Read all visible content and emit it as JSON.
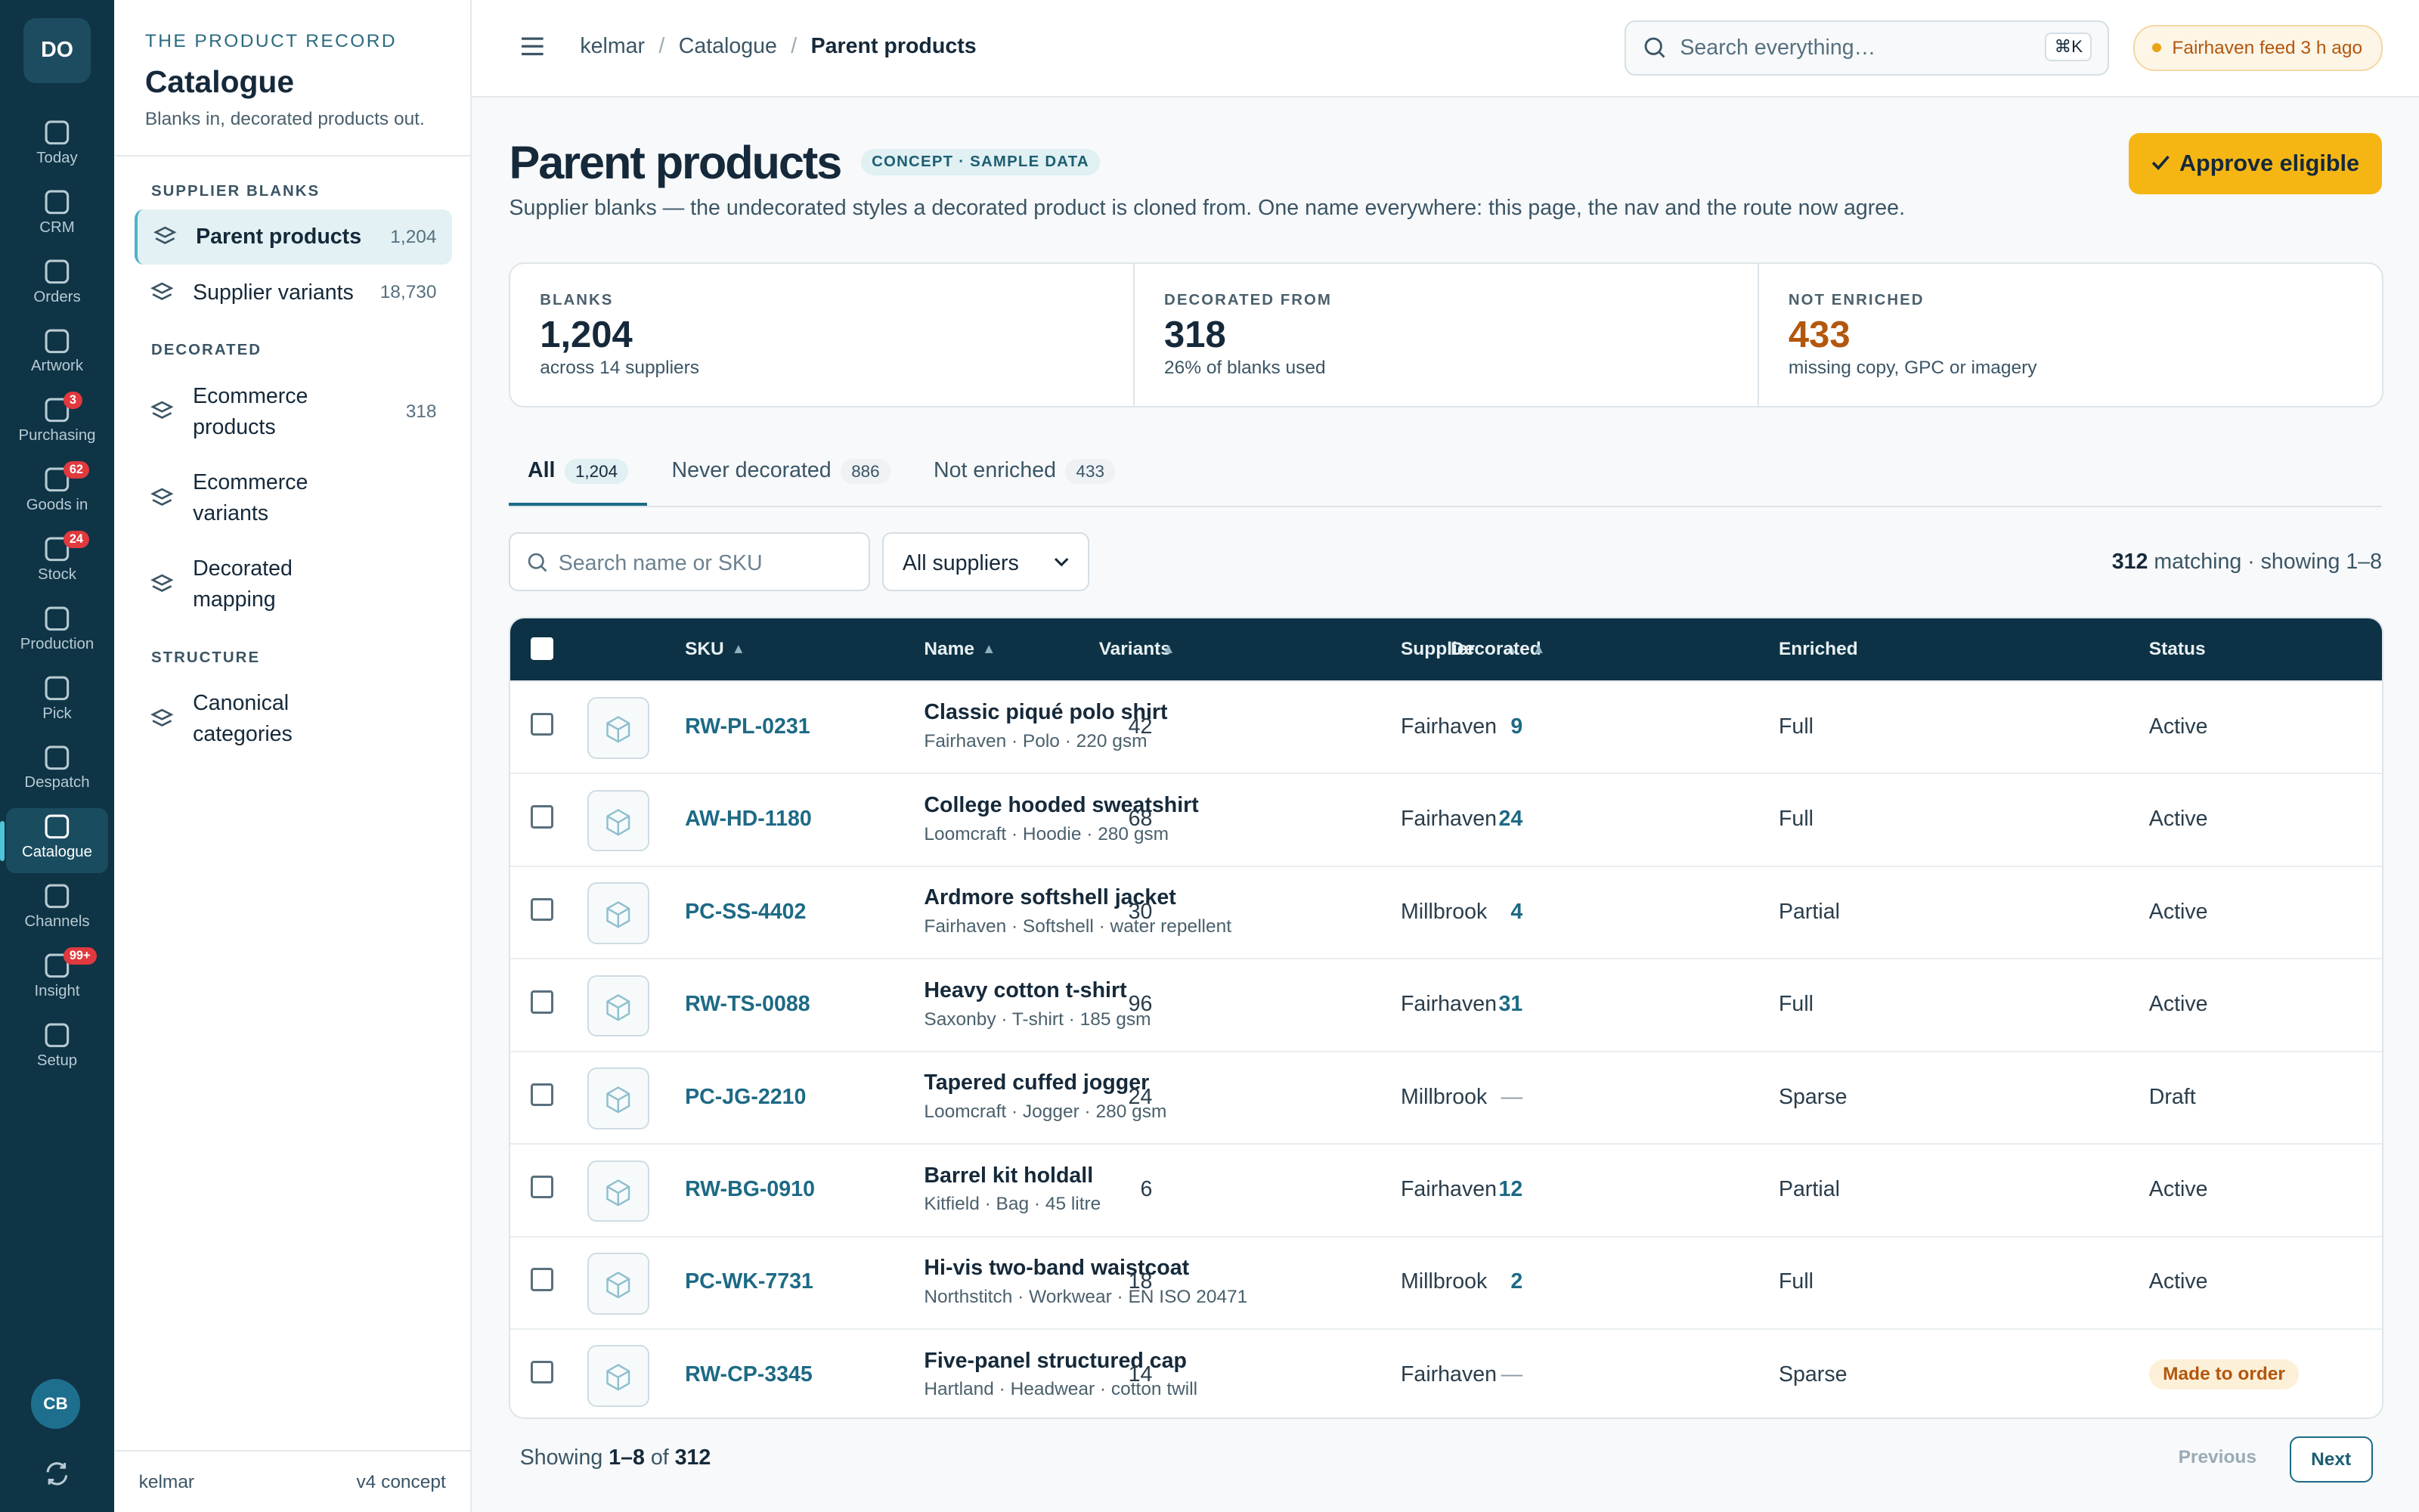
{
  "rail": {
    "logo": "DO",
    "items": [
      {
        "label": "Today"
      },
      {
        "label": "CRM"
      },
      {
        "label": "Orders"
      },
      {
        "label": "Artwork"
      },
      {
        "label": "Purchasing",
        "badge": "3"
      },
      {
        "label": "Goods in",
        "badge": "62"
      },
      {
        "label": "Stock",
        "badge": "24"
      },
      {
        "label": "Production"
      },
      {
        "label": "Pick"
      },
      {
        "label": "Despatch"
      },
      {
        "label": "Catalogue"
      },
      {
        "label": "Channels"
      },
      {
        "label": "Insight",
        "badge": "99+"
      },
      {
        "label": "Setup"
      }
    ],
    "avatar": "CB"
  },
  "sidebar": {
    "eyebrow": "THE PRODUCT RECORD",
    "title": "Catalogue",
    "subtitle": "Blanks in, decorated products out.",
    "sections": [
      {
        "heading": "SUPPLIER BLANKS",
        "items": [
          {
            "label": "Parent products",
            "count": "1,204"
          },
          {
            "label": "Supplier variants",
            "count": "18,730"
          }
        ]
      },
      {
        "heading": "DECORATED",
        "items": [
          {
            "label": "Ecommerce products",
            "count": "318"
          },
          {
            "label": "Ecommerce variants"
          },
          {
            "label": "Decorated mapping"
          }
        ]
      },
      {
        "heading": "STRUCTURE",
        "items": [
          {
            "label": "Canonical categories"
          }
        ]
      }
    ],
    "footer_left": "kelmar",
    "footer_right": "v4 concept"
  },
  "topbar": {
    "breadcrumbs": [
      "kelmar",
      "Catalogue",
      "Parent products"
    ],
    "search": "Search everything…",
    "shortcut": "⌘K",
    "feed": "Fairhaven feed 3 h ago"
  },
  "page": {
    "title": "Parent products",
    "tag": "CONCEPT · SAMPLE DATA",
    "description": "Supplier blanks — the undecorated styles a decorated product is cloned from. One name everywhere: this page, the nav and the route now agree.",
    "action": "Approve eligible"
  },
  "stats": [
    {
      "label": "BLANKS",
      "value": "1,204",
      "note": "across 14 suppliers"
    },
    {
      "label": "DECORATED FROM",
      "value": "318",
      "note": "26% of blanks used"
    },
    {
      "label": "NOT ENRICHED",
      "value": "433",
      "note": "missing copy, GPC or imagery"
    }
  ],
  "tabs": [
    {
      "label": "All",
      "count": "1,204"
    },
    {
      "label": "Never decorated",
      "count": "886"
    },
    {
      "label": "Not enriched",
      "count": "433"
    }
  ],
  "filters": {
    "search": "Search name or SKU",
    "supplier": "All suppliers",
    "matching_count": "312",
    "matching_text": "matching · showing 1–8"
  },
  "table": {
    "columns": [
      "SKU",
      "Name",
      "Supplier",
      "Variants",
      "Enriched",
      "Decorated",
      "Status"
    ],
    "rows": [
      {
        "sku": "RW-PL-0231",
        "name": "Classic piqué polo shirt",
        "meta": "Fairhaven · Polo · 220 gsm",
        "supplier": "Fairhaven",
        "variants": 42,
        "enriched": "Full",
        "decorated": 9,
        "status": "Active"
      },
      {
        "sku": "AW-HD-1180",
        "name": "College hooded sweatshirt",
        "meta": "Loomcraft · Hoodie · 280 gsm",
        "supplier": "Fairhaven",
        "variants": 68,
        "enriched": "Full",
        "decorated": 24,
        "status": "Active"
      },
      {
        "sku": "PC-SS-4402",
        "name": "Ardmore softshell jacket",
        "meta": "Fairhaven · Softshell · water repellent",
        "supplier": "Millbrook",
        "variants": 30,
        "enriched": "Partial",
        "decorated": 4,
        "status": "Active"
      },
      {
        "sku": "RW-TS-0088",
        "name": "Heavy cotton t-shirt",
        "meta": "Saxonby · T-shirt · 185 gsm",
        "supplier": "Fairhaven",
        "variants": 96,
        "enriched": "Full",
        "decorated": 31,
        "status": "Active"
      },
      {
        "sku": "PC-JG-2210",
        "name": "Tapered cuffed jogger",
        "meta": "Loomcraft · Jogger · 280 gsm",
        "supplier": "Millbrook",
        "variants": 24,
        "enriched": "Sparse",
        "decorated": "—",
        "status": "Draft"
      },
      {
        "sku": "RW-BG-0910",
        "name": "Barrel kit holdall",
        "meta": "Kitfield · Bag · 45 litre",
        "supplier": "Fairhaven",
        "variants": 6,
        "enriched": "Partial",
        "decorated": 12,
        "status": "Active"
      },
      {
        "sku": "PC-WK-7731",
        "name": "Hi-vis two-band waistcoat",
        "meta": "Northstitch · Workwear · EN ISO 20471",
        "supplier": "Millbrook",
        "variants": 18,
        "enriched": "Full",
        "decorated": 2,
        "status": "Active"
      },
      {
        "sku": "RW-CP-3345",
        "name": "Five-panel structured cap",
        "meta": "Hartland · Headwear · cotton twill",
        "supplier": "Fairhaven",
        "variants": 14,
        "enriched": "Sparse",
        "decorated": "—",
        "status": "Made to order"
      }
    ]
  },
  "pagination": {
    "prefix": "Showing",
    "range": "1–8",
    "of": "of",
    "total": "312",
    "previous": "Previous",
    "next": "Next"
  }
}
